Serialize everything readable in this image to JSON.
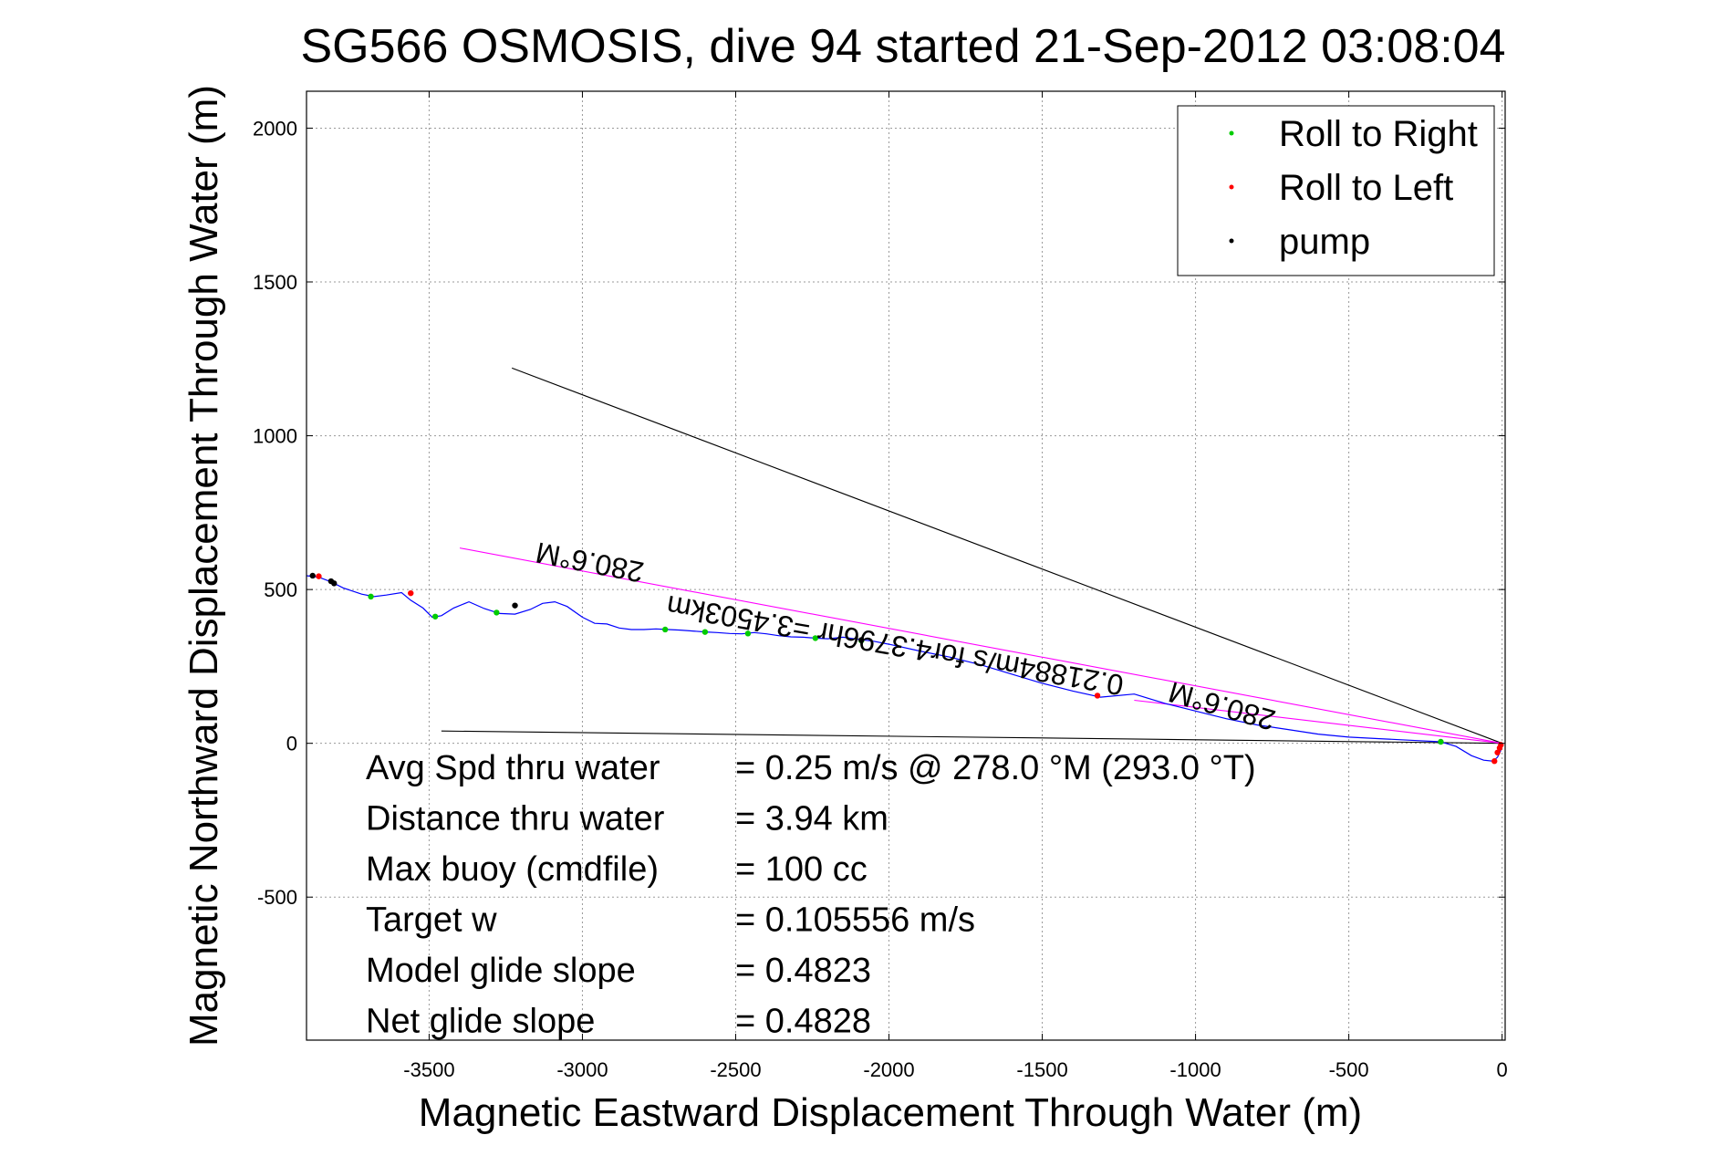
{
  "chart_data": {
    "type": "line",
    "title": "SG566 OSMOSIS, dive 94 started 21-Sep-2012 03:08:04",
    "xlabel": "Magnetic Eastward Displacement Through Water (m)",
    "ylabel": "Magnetic Northward Displacement Through Water (m)",
    "xlim": [
      -3900,
      10
    ],
    "ylim": [
      -965,
      2120
    ],
    "x_ticks": [
      -3500,
      -3000,
      -2500,
      -2000,
      -1500,
      -1000,
      -500,
      0
    ],
    "y_ticks": [
      -500,
      0,
      500,
      1000,
      1500,
      2000
    ],
    "grid": true,
    "legend_position": "top-right",
    "legend": [
      {
        "label": "Roll to Right",
        "color": "#00cc00"
      },
      {
        "label": "Roll to Left",
        "color": "#ff0000"
      },
      {
        "label": "pump",
        "color": "#000000"
      }
    ],
    "series": [
      {
        "name": "",
        "style": "track",
        "color": "#0000ff",
        "x": [
          -3900,
          -3860,
          -3820,
          -3780,
          -3720,
          -3680,
          -3640,
          -3590,
          -3560,
          -3520,
          -3490,
          -3460,
          -3420,
          -3370,
          -3320,
          -3270,
          -3220,
          -3170,
          -3130,
          -3090,
          -3050,
          -3000,
          -2960,
          -2920,
          -2880,
          -2840,
          -2800,
          -2760,
          -2720,
          -2680,
          -2640,
          -2600,
          -2560,
          -2520,
          -2480,
          -2440,
          -2400,
          -2360,
          -2320,
          -2280,
          -2240,
          -2200,
          -2150,
          -2100,
          -2050,
          -2000,
          -1900,
          -1800,
          -1700,
          -1600,
          -1500,
          -1400,
          -1310,
          -1200,
          -1100,
          -1000,
          -900,
          -800,
          -700,
          -600,
          -500,
          -400,
          -300,
          -200,
          -150,
          -100,
          -60,
          -30,
          -15,
          -5,
          0
        ],
        "y": [
          545,
          540,
          525,
          505,
          485,
          477,
          482,
          490,
          465,
          440,
          410,
          415,
          440,
          460,
          438,
          422,
          420,
          435,
          455,
          460,
          445,
          410,
          390,
          388,
          375,
          370,
          370,
          372,
          370,
          368,
          365,
          362,
          360,
          357,
          356,
          360,
          356,
          350,
          346,
          345,
          342,
          340,
          345,
          338,
          332,
          322,
          300,
          280,
          255,
          225,
          195,
          170,
          150,
          160,
          130,
          105,
          80,
          60,
          45,
          30,
          20,
          15,
          10,
          5,
          -10,
          -40,
          -55,
          -58,
          -45,
          -25,
          0
        ]
      }
    ],
    "markers": [
      {
        "type": "Roll to Right",
        "x": [
          -3690,
          -3480,
          -3280,
          -2730,
          -2600,
          -2460,
          -2240,
          -2090,
          -200
        ],
        "y": [
          477,
          412,
          425,
          370,
          362,
          357,
          342,
          334,
          5
        ]
      },
      {
        "type": "Roll to Left",
        "x": [
          -3860,
          -3560,
          -1320,
          -25,
          -15,
          -8,
          -4
        ],
        "y": [
          543,
          488,
          155,
          -58,
          -30,
          -15,
          -5
        ]
      },
      {
        "type": "pump",
        "x": [
          -3880,
          -3820,
          -3810,
          -3220,
          -2090
        ],
        "y": [
          545,
          527,
          520,
          448,
          336
        ]
      }
    ],
    "lines": [
      {
        "name": "",
        "color": "#000000",
        "x": [
          -3230,
          0
        ],
        "y": [
          1220,
          0
        ]
      },
      {
        "name": "",
        "color": "#000000",
        "x": [
          -3460,
          0
        ],
        "y": [
          40,
          0
        ]
      },
      {
        "name": "",
        "color": "#ff00ff",
        "x": [
          -3400,
          0
        ],
        "y": [
          635,
          0
        ]
      },
      {
        "name": "",
        "color": "#ff00ff",
        "x": [
          -1200,
          0
        ],
        "y": [
          140,
          0
        ]
      }
    ],
    "annotations": [
      {
        "text": "280.6°M",
        "x": -2970,
        "y": 620,
        "rotation_deg": 191
      },
      {
        "text": "0.21884m/s for4.3796hr =3.4503km",
        "x": -1975,
        "y": 350,
        "rotation_deg": 190
      },
      {
        "text": "280.6°M",
        "x": -905,
        "y": 152,
        "rotation_deg": 196
      }
    ]
  },
  "stats": [
    {
      "label": "Avg Spd thru water",
      "value": "=  0.25 m/s @ 278.0 °M (293.0 °T)"
    },
    {
      "label": "Distance thru water",
      "value": "=  3.94 km"
    },
    {
      "label": "Max buoy (cmdfile)",
      "value": "= 100 cc"
    },
    {
      "label": "Target w",
      "value": "= 0.105556 m/s"
    },
    {
      "label": "Model glide slope",
      "value": "= 0.4823"
    },
    {
      "label": "Net glide slope",
      "value": "= 0.4828"
    }
  ]
}
